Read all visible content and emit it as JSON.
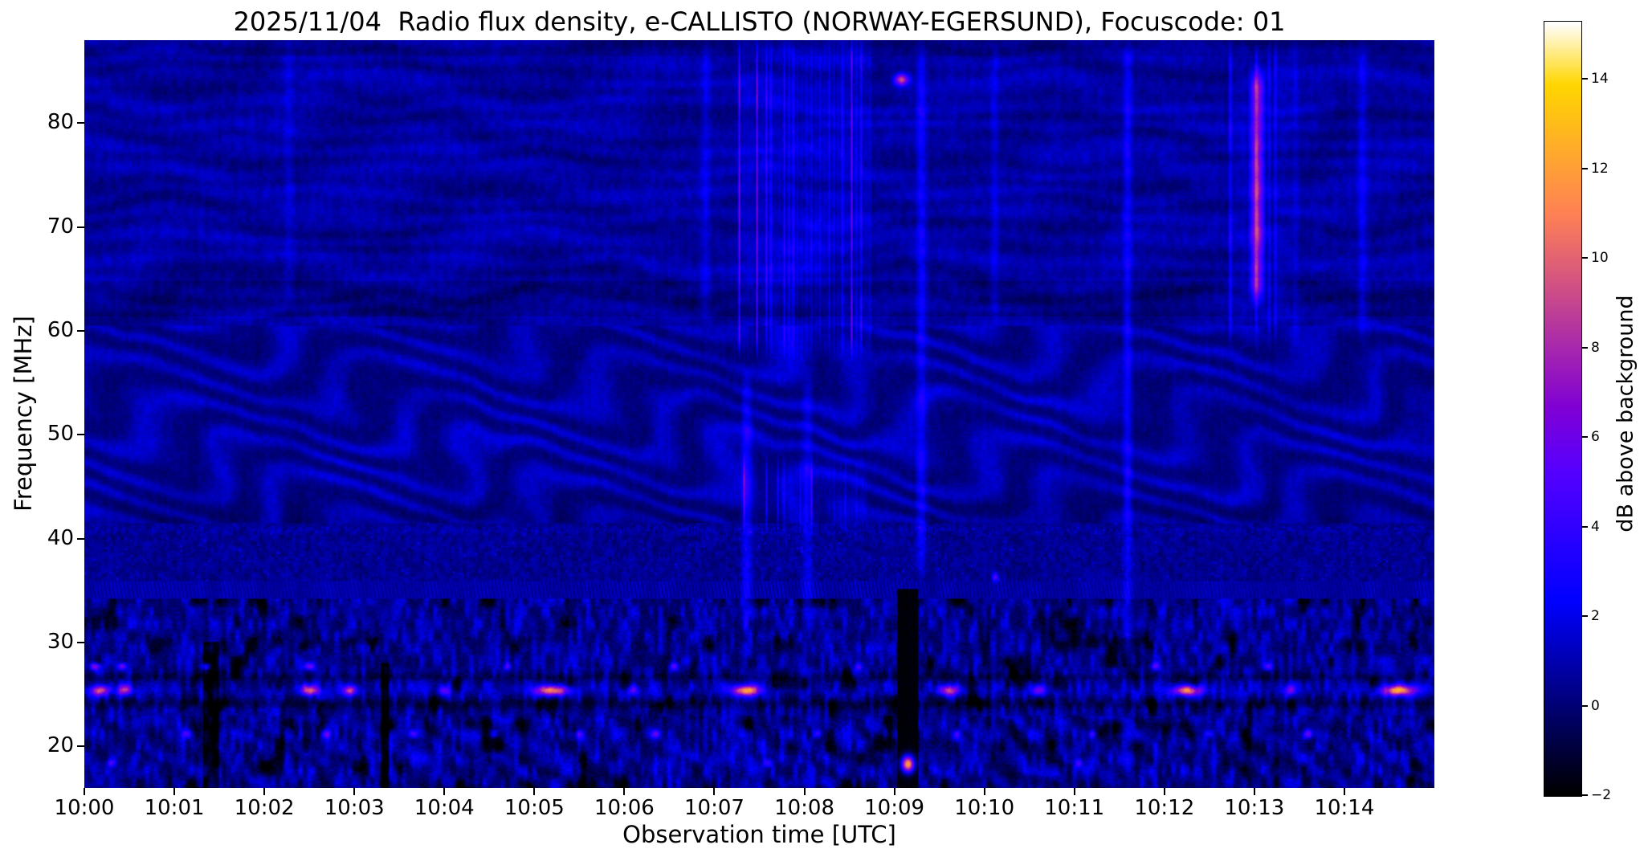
{
  "figure": {
    "title": "2025/11/04  Radio flux density, e-CALLISTO (NORWAY-EGERSUND), Focuscode: 01",
    "xlabel": "Observation time [UTC]",
    "ylabel": "Frequency [MHz]"
  },
  "chart_data": {
    "type": "heatmap",
    "title": "2025/11/04  Radio flux density, e-CALLISTO (NORWAY-EGERSUND), Focuscode: 01",
    "xlabel": "Observation time [UTC]",
    "ylabel": "Frequency [MHz]",
    "x_ticks": [
      "10:00",
      "10:01",
      "10:02",
      "10:03",
      "10:04",
      "10:05",
      "10:06",
      "10:07",
      "10:08",
      "10:09",
      "10:10",
      "10:11",
      "10:12",
      "10:13",
      "10:14"
    ],
    "x_range_minutes": [
      0,
      15
    ],
    "x_start": "10:00",
    "x_end": "10:15",
    "y_ticks": [
      20,
      30,
      40,
      50,
      60,
      70,
      80
    ],
    "y_range_mhz": [
      16,
      88
    ],
    "grid": false,
    "colorbar": {
      "label": "dB above background",
      "ticks": [
        -2,
        0,
        2,
        4,
        6,
        8,
        10,
        12,
        14
      ],
      "tick_labels": [
        "−2",
        "0",
        "2",
        "4",
        "6",
        "8",
        "10",
        "12",
        "14"
      ],
      "vmin": -2,
      "vmax": 15.3,
      "colormap": "gnuplot2-like (black-blue-magenta-orange-yellow-white)"
    },
    "notes": [
      "quiet navy-blue background with dark horizontal striations above 60 MHz",
      "strong wavy ionospheric ripple pattern between ~42 and 60 MHz",
      "noisy bright-blue interference band below ~33 MHz with black patches",
      "intermittent orange/yellow narrowband RFI bursts near 25.4 MHz",
      "broadband vertical burst cluster ~10:07.3-10:08.7 (57-88 MHz and 40-48 MHz)",
      "bright magenta vertical streak near 10:13 (62-86 MHz)",
      "black data dropout column near 10:09.1 below 35 MHz with yellow blob at ~18 MHz",
      "small bright dash at ~84 MHz near 10:09"
    ],
    "features": {
      "dark_columns": [
        {
          "t0": 1.32,
          "t1": 1.5,
          "f1": 30
        },
        {
          "t0": 3.3,
          "t1": 3.38,
          "f1": 28
        }
      ],
      "band_bursts": [
        {
          "f": 25.4,
          "df": 0.5,
          "events": [
            [
              0.17,
              0.1,
              9
            ],
            [
              0.45,
              0.08,
              7
            ],
            [
              2.5,
              0.1,
              9
            ],
            [
              2.95,
              0.08,
              8
            ],
            [
              4.0,
              0.06,
              5
            ],
            [
              5.2,
              0.18,
              11
            ],
            [
              6.1,
              0.06,
              5
            ],
            [
              7.35,
              0.15,
              11
            ],
            [
              9.6,
              0.12,
              8
            ],
            [
              10.6,
              0.08,
              6
            ],
            [
              12.25,
              0.15,
              11
            ],
            [
              13.4,
              0.06,
              5
            ],
            [
              14.6,
              0.18,
              11
            ]
          ]
        },
        {
          "f": 27.7,
          "df": 0.35,
          "events": [
            [
              0.12,
              0.06,
              7
            ],
            [
              0.42,
              0.05,
              6
            ],
            [
              1.35,
              0.05,
              5
            ],
            [
              2.5,
              0.06,
              6
            ],
            [
              4.7,
              0.04,
              4
            ],
            [
              6.55,
              0.05,
              5
            ],
            [
              8.6,
              0.04,
              4
            ],
            [
              11.9,
              0.05,
              5
            ],
            [
              13.15,
              0.05,
              5
            ]
          ]
        },
        {
          "f": 21.2,
          "df": 0.4,
          "events": [
            [
              1.15,
              0.05,
              5
            ],
            [
              2.7,
              0.04,
              4
            ],
            [
              3.65,
              0.06,
              5
            ],
            [
              4.55,
              0.05,
              4
            ],
            [
              5.5,
              0.04,
              4
            ],
            [
              6.35,
              0.05,
              5
            ],
            [
              8.15,
              0.04,
              5
            ],
            [
              9.7,
              0.04,
              4
            ],
            [
              11.2,
              0.04,
              4
            ],
            [
              12.5,
              0.05,
              4
            ],
            [
              13.6,
              0.05,
              5
            ]
          ]
        },
        {
          "f": 18.4,
          "df": 0.4,
          "events": [
            [
              0.3,
              0.05,
              4
            ],
            [
              7.6,
              0.05,
              5
            ],
            [
              11.05,
              0.04,
              4
            ]
          ]
        }
      ],
      "vertical_streaks": [
        {
          "t0": 7.25,
          "t1": 8.75,
          "f0": 57,
          "f1": 88.5,
          "amp": 5.0,
          "style": "lines",
          "lpm": 20
        },
        {
          "t0": 7.3,
          "t1": 8.7,
          "f0": 40,
          "f1": 48.5,
          "amp": 3.4,
          "style": "lines",
          "lpm": 16
        },
        {
          "t0": 7.28,
          "t1": 7.44,
          "f0": 30,
          "f1": 57,
          "amp": 2.4,
          "style": "smooth"
        },
        {
          "t0": 7.95,
          "t1": 8.12,
          "f0": 30,
          "f1": 57,
          "amp": 1.6,
          "style": "smooth"
        },
        {
          "t0": 9.22,
          "t1": 9.38,
          "f0": 36,
          "f1": 88.5,
          "amp": 2.2,
          "style": "smooth"
        },
        {
          "t0": 11.52,
          "t1": 11.66,
          "f0": 28,
          "f1": 88.5,
          "amp": 2.4,
          "style": "smooth"
        },
        {
          "t0": 12.7,
          "t1": 13.5,
          "f0": 58,
          "f1": 88.5,
          "amp": 3.2,
          "style": "lines",
          "lpm": 14
        },
        {
          "t0": 12.93,
          "t1": 13.13,
          "f0": 62,
          "f1": 86,
          "amp": 7.0,
          "style": "smooth"
        },
        {
          "t0": 14.12,
          "t1": 14.28,
          "f0": 58,
          "f1": 88.5,
          "amp": 1.8,
          "style": "smooth"
        },
        {
          "t0": 6.82,
          "t1": 6.98,
          "f0": 60,
          "f1": 88.5,
          "amp": 1.5,
          "style": "smooth"
        },
        {
          "t0": 2.2,
          "t1": 2.35,
          "f0": 62,
          "f1": 88.5,
          "amp": 1.2,
          "style": "smooth"
        },
        {
          "t0": 10.05,
          "t1": 10.18,
          "f0": 60,
          "f1": 88.5,
          "amp": 1.3,
          "style": "smooth"
        }
      ],
      "dropout": {
        "t0": 9.03,
        "t1": 9.27,
        "f1": 35.2
      },
      "blobs": [
        {
          "t": 9.15,
          "f": 18.3,
          "dt": 0.07,
          "df": 0.8,
          "amp": 14
        },
        {
          "t": 9.08,
          "f": 84.2,
          "dt": 0.08,
          "df": 0.55,
          "amp": 9
        },
        {
          "t": 10.12,
          "f": 36.3,
          "dt": 0.035,
          "df": 0.4,
          "amp": 5
        }
      ]
    }
  }
}
